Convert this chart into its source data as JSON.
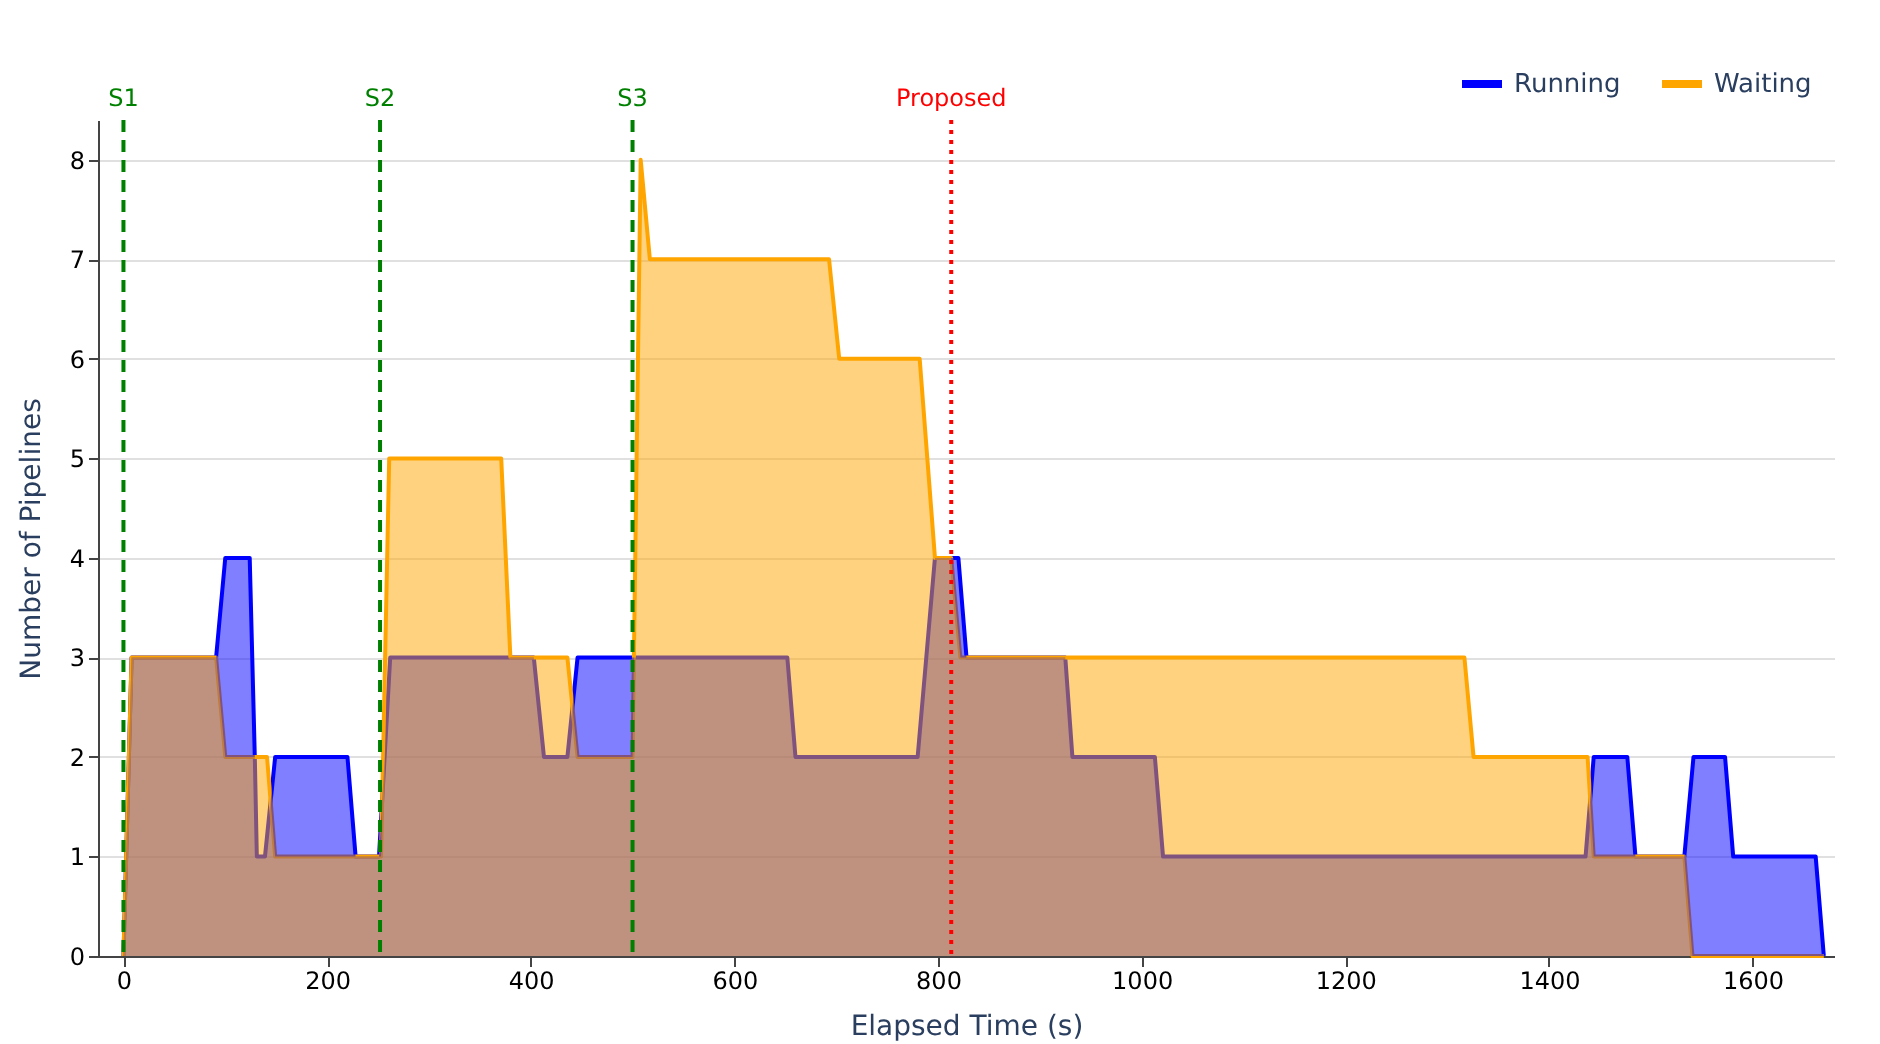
{
  "chart_data": {
    "type": "area",
    "xlabel": "Elapsed Time (s)",
    "ylabel": "Number of Pipelines",
    "series": [
      {
        "name": "Running",
        "color": "#0000ff",
        "x": [
          0,
          8,
          91,
          100,
          124,
          129,
          131,
          139,
          149,
          220,
          228,
          251,
          262,
          403,
          413,
          436,
          446,
          652,
          660,
          780,
          797,
          820,
          828,
          925,
          932,
          1013,
          1021,
          1436,
          1444,
          1477,
          1485,
          1533,
          1542,
          1573,
          1581,
          1662,
          1670
        ],
        "values": [
          0,
          3,
          3,
          4,
          4,
          2,
          1,
          1,
          2,
          2,
          1,
          1,
          3,
          3,
          2,
          2,
          3,
          3,
          2,
          2,
          4,
          4,
          3,
          3,
          2,
          2,
          1,
          1,
          2,
          2,
          1,
          1,
          2,
          2,
          1,
          1,
          0
        ]
      },
      {
        "name": "Waiting",
        "color": "#ffa500",
        "x": [
          0,
          8,
          91,
          100,
          141,
          149,
          253,
          261,
          371,
          380,
          436,
          446,
          500,
          508,
          517,
          693,
          703,
          782,
          797,
          813,
          822,
          1317,
          1326,
          1438,
          1444,
          1533,
          1541,
          1670
        ],
        "values": [
          0,
          3,
          3,
          2,
          2,
          1,
          1,
          5,
          5,
          3,
          3,
          2,
          2,
          8,
          7,
          7,
          6,
          6,
          4,
          4,
          3,
          3,
          2,
          2,
          1,
          1,
          0,
          0
        ]
      }
    ],
    "xlim": [
      -25,
      1680
    ],
    "xticks": [
      0,
      200,
      400,
      600,
      800,
      1000,
      1200,
      1400,
      1600
    ],
    "ylim": [
      0,
      8.4
    ],
    "yticks": [
      0,
      1,
      2,
      3,
      4,
      5,
      6,
      7,
      8
    ],
    "grid": "y",
    "legend": "top right",
    "ref_lines": [
      {
        "axis": "x",
        "value": 0,
        "label": "S1",
        "color": "#008000",
        "line_style": "dashed"
      },
      {
        "axis": "x",
        "value": 252,
        "label": "S2",
        "color": "#008000",
        "line_style": "dashed"
      },
      {
        "axis": "x",
        "value": 500,
        "label": "S3",
        "color": "#008000",
        "line_style": "dashed"
      },
      {
        "axis": "x",
        "value": 813,
        "label": "Proposed",
        "color": "#ff0000",
        "line_style": "dotted"
      }
    ]
  }
}
